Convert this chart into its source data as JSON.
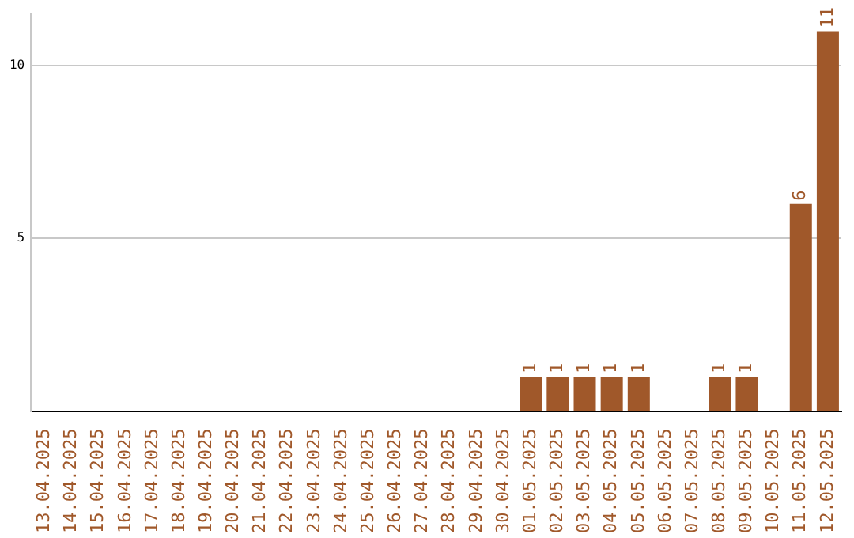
{
  "chart_data": {
    "type": "bar",
    "categories": [
      "13.04.2025",
      "14.04.2025",
      "15.04.2025",
      "16.04.2025",
      "17.04.2025",
      "18.04.2025",
      "19.04.2025",
      "20.04.2025",
      "21.04.2025",
      "22.04.2025",
      "23.04.2025",
      "24.04.2025",
      "25.04.2025",
      "26.04.2025",
      "27.04.2025",
      "28.04.2025",
      "29.04.2025",
      "30.04.2025",
      "01.05.2025",
      "02.05.2025",
      "03.05.2025",
      "04.05.2025",
      "05.05.2025",
      "06.05.2025",
      "07.05.2025",
      "08.05.2025",
      "09.05.2025",
      "10.05.2025",
      "11.05.2025",
      "12.05.2025"
    ],
    "values": [
      0,
      0,
      0,
      0,
      0,
      0,
      0,
      0,
      0,
      0,
      0,
      0,
      0,
      0,
      0,
      0,
      0,
      0,
      1,
      1,
      1,
      1,
      1,
      0,
      0,
      1,
      1,
      0,
      6,
      11
    ],
    "value_labels": [
      null,
      null,
      null,
      null,
      null,
      null,
      null,
      null,
      null,
      null,
      null,
      null,
      null,
      null,
      null,
      null,
      null,
      null,
      "1",
      "1",
      "1",
      "1",
      "1",
      null,
      null,
      "1",
      "1",
      null,
      "6",
      "11"
    ],
    "color": "#a0582a",
    "ylim": [
      0,
      11.5
    ],
    "yticks": [
      5,
      10
    ],
    "grid": "y"
  }
}
